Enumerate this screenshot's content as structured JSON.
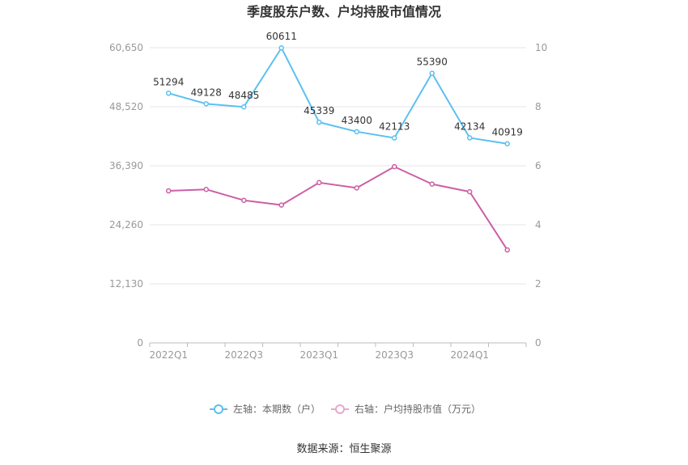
{
  "chart_data": {
    "type": "line",
    "title": "季度股东户数、户均持股市值情况",
    "x": [
      "2022Q1",
      "2022Q2",
      "2022Q3",
      "2022Q4",
      "2023Q1",
      "2023Q2",
      "2023Q3",
      "2023Q4",
      "2024Q1",
      "2024Q2"
    ],
    "x_tick_labels": [
      "2022Q1",
      "2022Q3",
      "2023Q1",
      "2023Q3",
      "2024Q1"
    ],
    "y_left": {
      "ylim": [
        0,
        60650
      ],
      "ticks": [
        "0",
        "12,130",
        "24,260",
        "36,390",
        "48,520",
        "60,650"
      ]
    },
    "y_right": {
      "ylim": [
        0,
        10
      ],
      "ticks": [
        "0",
        "2",
        "4",
        "6",
        "8",
        "10"
      ]
    },
    "series": [
      {
        "name": "左轴：本期数（户）",
        "axis": "left",
        "color": "#5bc0f0",
        "values": [
          51294,
          49128,
          48485,
          60611,
          45339,
          43400,
          42113,
          55390,
          42134,
          40919
        ],
        "labels": [
          "51294",
          "49128",
          "48485",
          "60611",
          "45339",
          "43400",
          "42113",
          "55390",
          "42134",
          "40919"
        ]
      },
      {
        "name": "右轴：户均持股市值（万元）",
        "axis": "right",
        "color": "#cc5fa5",
        "values": [
          5.15,
          5.2,
          4.83,
          4.67,
          5.43,
          5.25,
          5.97,
          5.38,
          5.12,
          3.15
        ]
      }
    ],
    "grid": true,
    "legend_position": "bottom"
  },
  "footer": {
    "source": "数据来源：恒生聚源"
  }
}
